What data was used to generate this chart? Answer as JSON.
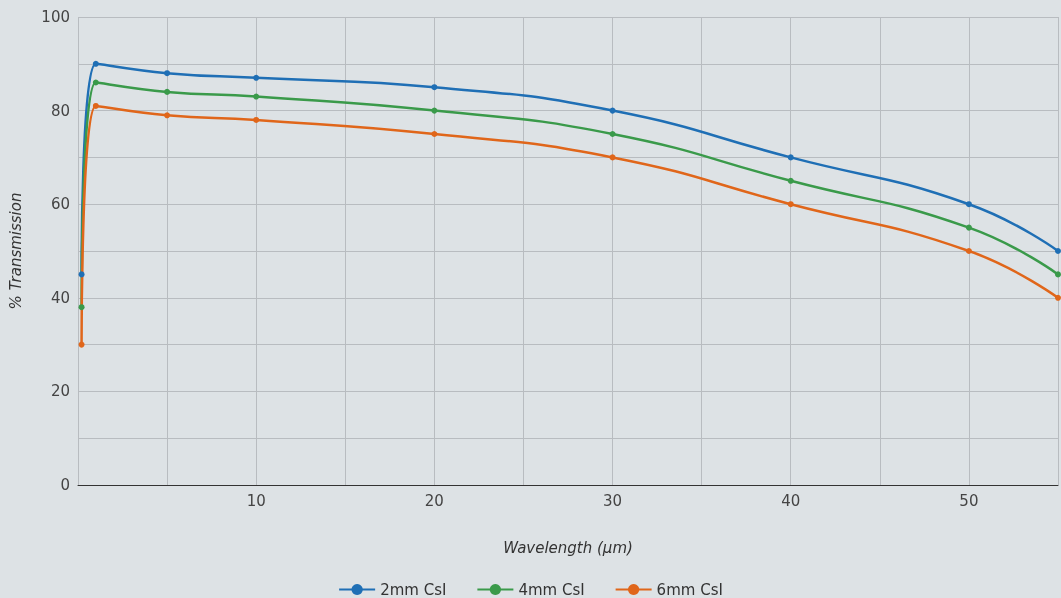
{
  "chart_data": {
    "type": "line",
    "xlabel": "Wavelength (µm)",
    "ylabel": "% Transmission",
    "x": [
      0.2,
      1,
      5,
      10,
      20,
      30,
      40,
      50,
      55
    ],
    "series": [
      {
        "name": "2mm CsI",
        "color": "#1f6fb5",
        "values": [
          45,
          90,
          88,
          87,
          85,
          80,
          70,
          60,
          50
        ]
      },
      {
        "name": "4mm CsI",
        "color": "#3a9a4a",
        "values": [
          38,
          86,
          84,
          83,
          80,
          75,
          65,
          55,
          45
        ]
      },
      {
        "name": "6mm CsI",
        "color": "#e0661a",
        "values": [
          30,
          81,
          79,
          78,
          75,
          70,
          60,
          50,
          40
        ]
      }
    ],
    "xlim": [
      0,
      55
    ],
    "xticks": [
      {
        "value": 0,
        "label": null
      },
      {
        "value": 5,
        "label": null
      },
      10,
      {
        "value": 15,
        "label": null
      },
      20,
      {
        "value": 25,
        "label": null
      },
      30,
      {
        "value": 35,
        "label": null
      },
      40,
      {
        "value": 45,
        "label": null
      },
      50,
      {
        "value": 55,
        "label": null
      }
    ],
    "ylim": [
      0,
      100
    ],
    "yticks": [
      0,
      {
        "value": 10,
        "label": null
      },
      20,
      {
        "value": 30,
        "label": null
      },
      40,
      {
        "value": 50,
        "label": null
      },
      60,
      {
        "value": 70,
        "label": null
      },
      80,
      {
        "value": 90,
        "label": null
      },
      100
    ],
    "grid": true,
    "legend": "bottom",
    "marker": "circle",
    "line_style": "solid"
  }
}
